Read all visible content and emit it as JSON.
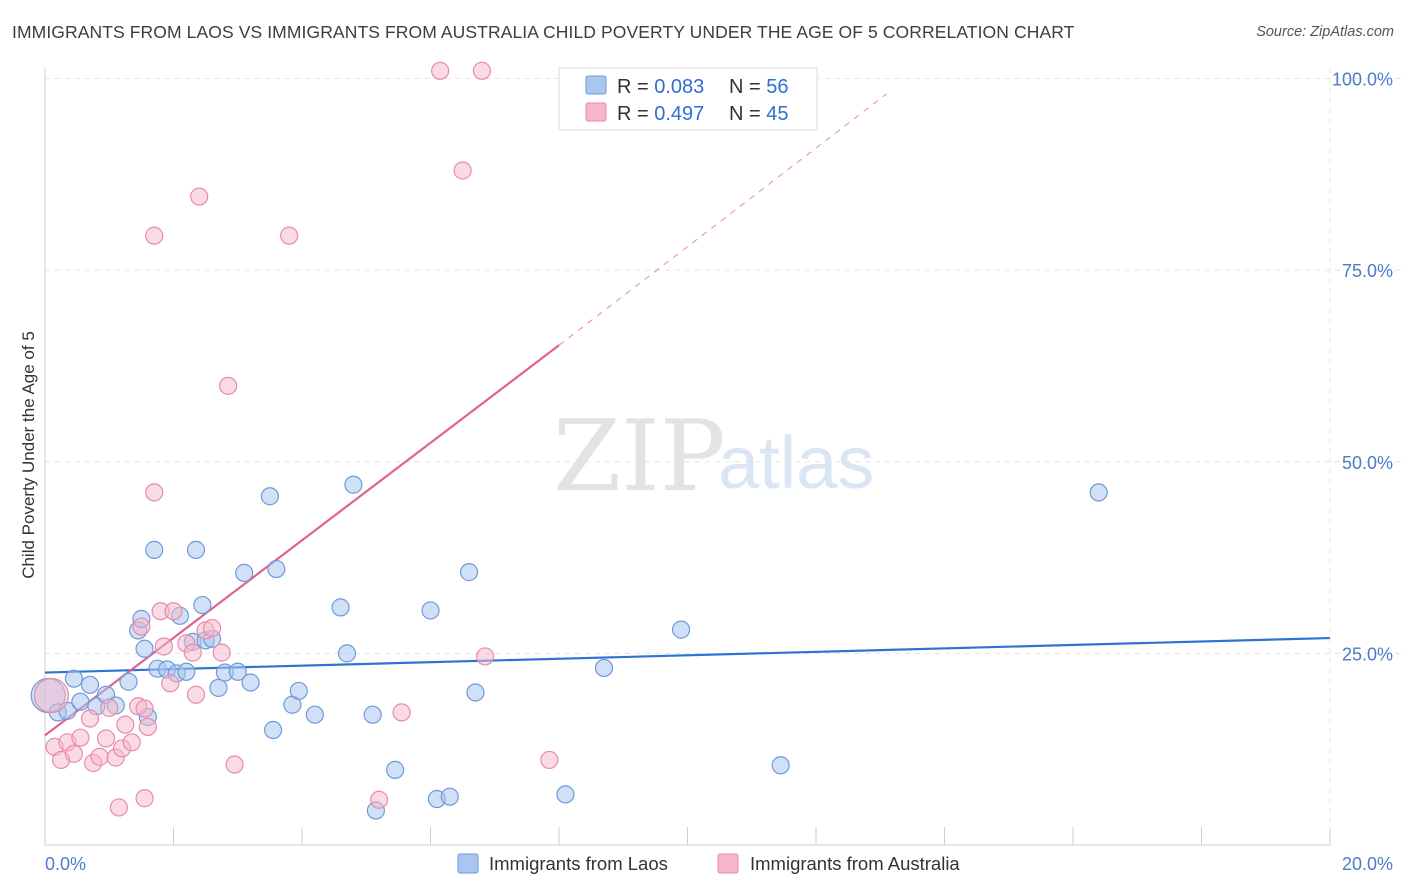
{
  "title": "IMMIGRANTS FROM LAOS VS IMMIGRANTS FROM AUSTRALIA CHILD POVERTY UNDER THE AGE OF 5 CORRELATION CHART",
  "source": "Source: ZipAtlas.com",
  "watermark": {
    "zip": "ZIP",
    "atlas": "atlas"
  },
  "legend_top": [
    {
      "r_label": "R = ",
      "r_value": "0.083",
      "n_label": "N = ",
      "n_value": "56"
    },
    {
      "r_label": "R = ",
      "r_value": "0.497",
      "n_label": "N = ",
      "n_value": "45"
    }
  ],
  "colors": {
    "laos_fill": "#a9c6ee",
    "laos_stroke": "#6f9ad8",
    "laos_line": "#2f73d0",
    "aus_fill": "#f6b7cb",
    "aus_stroke": "#e98aa8",
    "aus_line": "#e0628f",
    "accent_text": "#2f6fd0",
    "grid": "#e3e3e3"
  },
  "chart_data": {
    "type": "scatter",
    "title": "IMMIGRANTS FROM LAOS VS IMMIGRANTS FROM AUSTRALIA CHILD POVERTY UNDER THE AGE OF 5 CORRELATION CHART",
    "xlabel": "",
    "ylabel": "Child Poverty Under the Age of 5",
    "xlim": [
      0,
      20
    ],
    "ylim": [
      0,
      100
    ],
    "x_tick_labels": [
      {
        "value": 0,
        "label": "0.0%"
      },
      {
        "value": 20,
        "label": "20.0%"
      }
    ],
    "y_tick_labels": [
      {
        "value": 25,
        "label": "25.0%"
      },
      {
        "value": 50,
        "label": "50.0%"
      },
      {
        "value": 75,
        "label": "75.0%"
      },
      {
        "value": 100,
        "label": "100.0%"
      }
    ],
    "x_minor_ticks": [
      0,
      2,
      4,
      6,
      8,
      10,
      12,
      14,
      16,
      18,
      20
    ],
    "grid": true,
    "legend_position": "bottom-center",
    "series": [
      {
        "name": "Immigrants from Laos",
        "r": 0.083,
        "n": 56,
        "trend": {
          "x": [
            0,
            20
          ],
          "y": [
            22.5,
            27.0
          ],
          "dashed_extension": false
        },
        "points": [
          {
            "x": 0.05,
            "y": 19.5,
            "big": true
          },
          {
            "x": 0.2,
            "y": 17.3
          },
          {
            "x": 0.35,
            "y": 17.5
          },
          {
            "x": 0.45,
            "y": 21.7
          },
          {
            "x": 0.55,
            "y": 18.7
          },
          {
            "x": 0.7,
            "y": 20.9
          },
          {
            "x": 0.8,
            "y": 18.1
          },
          {
            "x": 0.95,
            "y": 19.6
          },
          {
            "x": 1.1,
            "y": 18.2
          },
          {
            "x": 1.3,
            "y": 21.3
          },
          {
            "x": 1.45,
            "y": 28.0
          },
          {
            "x": 1.5,
            "y": 29.5
          },
          {
            "x": 1.55,
            "y": 25.6
          },
          {
            "x": 1.6,
            "y": 16.7
          },
          {
            "x": 1.7,
            "y": 38.5
          },
          {
            "x": 1.75,
            "y": 23.0
          },
          {
            "x": 1.9,
            "y": 22.9
          },
          {
            "x": 2.05,
            "y": 22.4
          },
          {
            "x": 2.1,
            "y": 29.9
          },
          {
            "x": 2.2,
            "y": 22.6
          },
          {
            "x": 2.3,
            "y": 26.5
          },
          {
            "x": 2.35,
            "y": 38.5
          },
          {
            "x": 2.45,
            "y": 31.3
          },
          {
            "x": 2.5,
            "y": 26.7
          },
          {
            "x": 2.6,
            "y": 26.9
          },
          {
            "x": 2.7,
            "y": 20.5
          },
          {
            "x": 2.8,
            "y": 22.5
          },
          {
            "x": 3.0,
            "y": 22.6
          },
          {
            "x": 3.1,
            "y": 35.5
          },
          {
            "x": 3.2,
            "y": 21.2
          },
          {
            "x": 3.5,
            "y": 45.5
          },
          {
            "x": 3.55,
            "y": 15.0
          },
          {
            "x": 3.6,
            "y": 36.0
          },
          {
            "x": 3.85,
            "y": 18.3
          },
          {
            "x": 3.95,
            "y": 20.1
          },
          {
            "x": 4.2,
            "y": 17.0
          },
          {
            "x": 4.6,
            "y": 31.0
          },
          {
            "x": 4.7,
            "y": 25.0
          },
          {
            "x": 4.8,
            "y": 47.0
          },
          {
            "x": 5.1,
            "y": 17.0
          },
          {
            "x": 5.15,
            "y": 4.5
          },
          {
            "x": 5.45,
            "y": 9.8
          },
          {
            "x": 6.0,
            "y": 30.6
          },
          {
            "x": 6.1,
            "y": 6.0
          },
          {
            "x": 6.3,
            "y": 6.3
          },
          {
            "x": 6.6,
            "y": 35.6
          },
          {
            "x": 6.7,
            "y": 19.9
          },
          {
            "x": 8.1,
            "y": 6.6
          },
          {
            "x": 8.7,
            "y": 23.1
          },
          {
            "x": 9.9,
            "y": 28.1
          },
          {
            "x": 11.45,
            "y": 10.4
          },
          {
            "x": 16.4,
            "y": 46.0
          }
        ]
      },
      {
        "name": "Immigrants from Australia",
        "r": 0.497,
        "n": 45,
        "trend": {
          "x": [
            0,
            8.0
          ],
          "y": [
            14.3,
            65.2
          ],
          "dashed_extension": true,
          "dashed_to": {
            "x": 13.1,
            "y": 98.0
          }
        },
        "points": [
          {
            "x": 0.1,
            "y": 19.5,
            "big": true
          },
          {
            "x": 0.15,
            "y": 12.8
          },
          {
            "x": 0.25,
            "y": 11.1
          },
          {
            "x": 0.35,
            "y": 13.4
          },
          {
            "x": 0.45,
            "y": 11.9
          },
          {
            "x": 0.55,
            "y": 14.0
          },
          {
            "x": 0.7,
            "y": 16.5
          },
          {
            "x": 0.75,
            "y": 10.7
          },
          {
            "x": 0.85,
            "y": 11.5
          },
          {
            "x": 0.95,
            "y": 13.9
          },
          {
            "x": 1.0,
            "y": 17.9
          },
          {
            "x": 1.1,
            "y": 11.4
          },
          {
            "x": 1.2,
            "y": 12.6
          },
          {
            "x": 1.25,
            "y": 15.7
          },
          {
            "x": 1.35,
            "y": 13.4
          },
          {
            "x": 1.45,
            "y": 18.1
          },
          {
            "x": 1.15,
            "y": 4.9
          },
          {
            "x": 1.55,
            "y": 17.8
          },
          {
            "x": 1.5,
            "y": 28.5
          },
          {
            "x": 1.6,
            "y": 15.4
          },
          {
            "x": 1.55,
            "y": 6.1
          },
          {
            "x": 1.7,
            "y": 46.0
          },
          {
            "x": 1.7,
            "y": 79.5
          },
          {
            "x": 1.8,
            "y": 30.5
          },
          {
            "x": 1.85,
            "y": 25.9
          },
          {
            "x": 1.95,
            "y": 21.1
          },
          {
            "x": 2.0,
            "y": 30.5
          },
          {
            "x": 2.2,
            "y": 26.3
          },
          {
            "x": 2.3,
            "y": 25.1
          },
          {
            "x": 2.35,
            "y": 19.6
          },
          {
            "x": 2.4,
            "y": 84.6
          },
          {
            "x": 2.5,
            "y": 28.0
          },
          {
            "x": 2.6,
            "y": 28.3
          },
          {
            "x": 2.75,
            "y": 25.1
          },
          {
            "x": 2.85,
            "y": 59.9
          },
          {
            "x": 2.95,
            "y": 10.5
          },
          {
            "x": 3.8,
            "y": 79.5
          },
          {
            "x": 5.2,
            "y": 5.9
          },
          {
            "x": 5.55,
            "y": 17.3
          },
          {
            "x": 6.15,
            "y": 101.0
          },
          {
            "x": 6.5,
            "y": 88.0
          },
          {
            "x": 6.8,
            "y": 101.0
          },
          {
            "x": 6.85,
            "y": 24.6
          },
          {
            "x": 7.85,
            "y": 11.1
          }
        ]
      }
    ]
  }
}
